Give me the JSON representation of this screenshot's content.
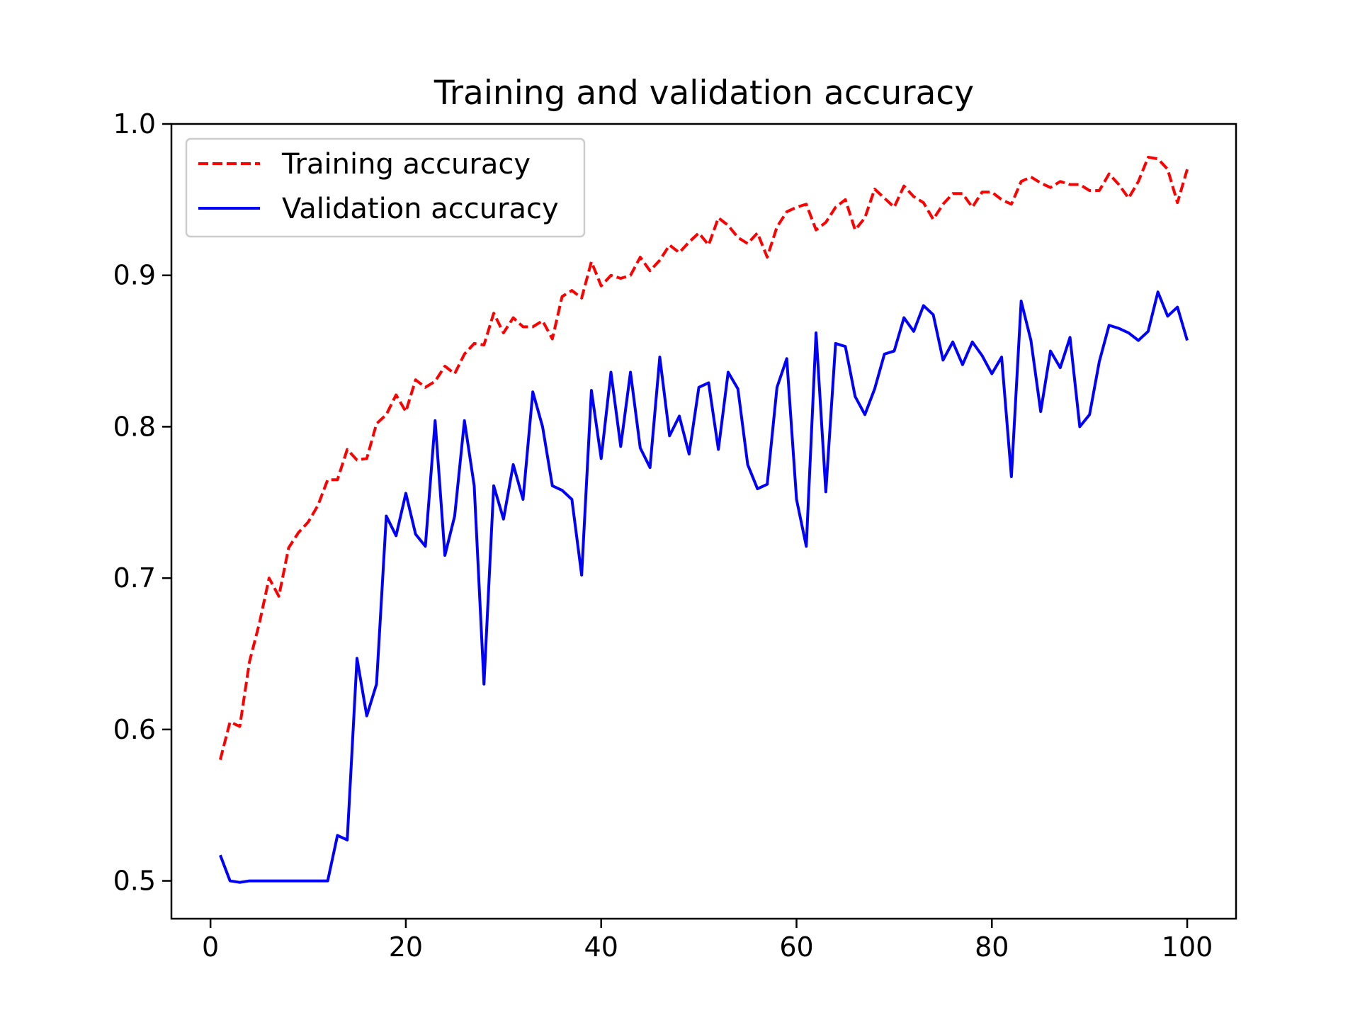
{
  "chart_data": {
    "type": "line",
    "title": "Training and validation accuracy",
    "xlabel": "",
    "ylabel": "",
    "xlim": [
      -4,
      105
    ],
    "ylim": [
      0.475,
      1.0
    ],
    "xticks": [
      0,
      20,
      40,
      60,
      80,
      100
    ],
    "yticks": [
      0.5,
      0.6,
      0.7,
      0.8,
      0.9,
      1.0
    ],
    "xtick_labels": [
      "0",
      "20",
      "40",
      "60",
      "80",
      "100"
    ],
    "ytick_labels": [
      "0.5",
      "0.6",
      "0.7",
      "0.8",
      "0.9",
      "1.0"
    ],
    "grid": false,
    "legend_position": "top-left",
    "x": [
      1,
      2,
      3,
      4,
      5,
      6,
      7,
      8,
      9,
      10,
      11,
      12,
      13,
      14,
      15,
      16,
      17,
      18,
      19,
      20,
      21,
      22,
      23,
      24,
      25,
      26,
      27,
      28,
      29,
      30,
      31,
      32,
      33,
      34,
      35,
      36,
      37,
      38,
      39,
      40,
      41,
      42,
      43,
      44,
      45,
      46,
      47,
      48,
      49,
      50,
      51,
      52,
      53,
      54,
      55,
      56,
      57,
      58,
      59,
      60,
      61,
      62,
      63,
      64,
      65,
      66,
      67,
      68,
      69,
      70,
      71,
      72,
      73,
      74,
      75,
      76,
      77,
      78,
      79,
      80,
      81,
      82,
      83,
      84,
      85,
      86,
      87,
      88,
      89,
      90,
      91,
      92,
      93,
      94,
      95,
      96,
      97,
      98,
      99,
      100
    ],
    "series": [
      {
        "name": "Training accuracy",
        "color": "#ff0000",
        "style": "dashed",
        "values": [
          0.58,
          0.605,
          0.602,
          0.645,
          0.67,
          0.7,
          0.688,
          0.72,
          0.73,
          0.737,
          0.748,
          0.765,
          0.765,
          0.785,
          0.778,
          0.779,
          0.802,
          0.808,
          0.821,
          0.81,
          0.831,
          0.826,
          0.83,
          0.84,
          0.835,
          0.848,
          0.855,
          0.854,
          0.875,
          0.862,
          0.872,
          0.866,
          0.866,
          0.87,
          0.858,
          0.886,
          0.89,
          0.885,
          0.909,
          0.893,
          0.9,
          0.898,
          0.9,
          0.912,
          0.903,
          0.91,
          0.92,
          0.915,
          0.922,
          0.928,
          0.92,
          0.938,
          0.933,
          0.925,
          0.921,
          0.928,
          0.912,
          0.932,
          0.942,
          0.945,
          0.947,
          0.93,
          0.935,
          0.945,
          0.95,
          0.93,
          0.938,
          0.957,
          0.951,
          0.945,
          0.959,
          0.952,
          0.948,
          0.937,
          0.947,
          0.954,
          0.954,
          0.945,
          0.955,
          0.955,
          0.95,
          0.947,
          0.962,
          0.965,
          0.961,
          0.958,
          0.962,
          0.96,
          0.96,
          0.956,
          0.956,
          0.967,
          0.96,
          0.951,
          0.962,
          0.978,
          0.977,
          0.97,
          0.948,
          0.97
        ]
      },
      {
        "name": "Validation accuracy",
        "color": "#0000ff",
        "style": "solid",
        "values": [
          0.517,
          0.5,
          0.499,
          0.5,
          0.5,
          0.5,
          0.5,
          0.5,
          0.5,
          0.5,
          0.5,
          0.5,
          0.53,
          0.527,
          0.647,
          0.609,
          0.63,
          0.741,
          0.728,
          0.756,
          0.729,
          0.721,
          0.804,
          0.715,
          0.741,
          0.804,
          0.761,
          0.63,
          0.761,
          0.739,
          0.775,
          0.752,
          0.823,
          0.8,
          0.761,
          0.758,
          0.752,
          0.702,
          0.824,
          0.779,
          0.836,
          0.787,
          0.836,
          0.786,
          0.773,
          0.846,
          0.794,
          0.807,
          0.782,
          0.826,
          0.829,
          0.785,
          0.836,
          0.825,
          0.775,
          0.759,
          0.762,
          0.826,
          0.845,
          0.752,
          0.721,
          0.862,
          0.757,
          0.855,
          0.853,
          0.82,
          0.808,
          0.825,
          0.848,
          0.85,
          0.872,
          0.863,
          0.88,
          0.874,
          0.844,
          0.856,
          0.841,
          0.856,
          0.847,
          0.835,
          0.846,
          0.767,
          0.883,
          0.857,
          0.81,
          0.85,
          0.839,
          0.859,
          0.8,
          0.808,
          0.843,
          0.867,
          0.865,
          0.862,
          0.857,
          0.863,
          0.889,
          0.873,
          0.879,
          0.857
        ]
      }
    ]
  }
}
